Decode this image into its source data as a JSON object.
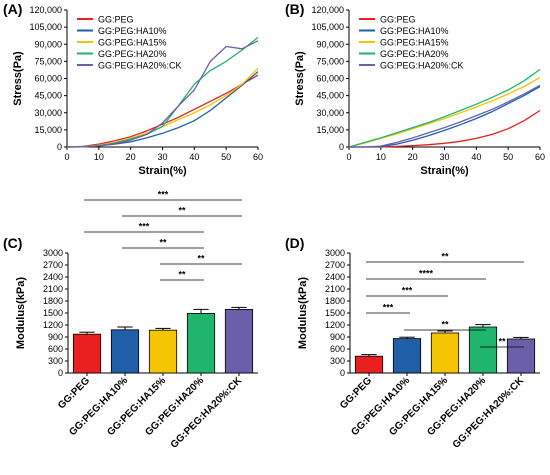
{
  "figure": {
    "colors": {
      "GG:PEG": "#e8201f",
      "GG:PEG:HA10%": "#1e5fa8",
      "GG:PEG:HA15%": "#f5c400",
      "GG:PEG:HA20%": "#1fb56c",
      "GG:PEG:HA20%:CK": "#6a5fa8"
    }
  },
  "chart_data": [
    {
      "panel": "(A)",
      "type": "line",
      "xlabel": "Strain(%)",
      "ylabel": "Stress(Pa)",
      "xlim": [
        0,
        60
      ],
      "ylim": [
        0,
        120000
      ],
      "xticks": [
        "0",
        "10",
        "20",
        "30",
        "40",
        "50",
        "60"
      ],
      "yticks": [
        "0",
        "15,000",
        "30,000",
        "45,000",
        "60,000",
        "75,000",
        "90,000",
        "105,000",
        "120,000"
      ],
      "legend_position": "top-left",
      "x": [
        0,
        5,
        10,
        15,
        20,
        25,
        30,
        35,
        40,
        45,
        50,
        55,
        60
      ],
      "series": [
        {
          "name": "GG:PEG",
          "values": [
            0,
            500,
            2500,
            5500,
            9000,
            14000,
            20000,
            26000,
            33000,
            40000,
            47000,
            55000,
            63000
          ]
        },
        {
          "name": "GG:PEG:HA10%",
          "values": [
            0,
            200,
            1000,
            2500,
            4500,
            8000,
            12000,
            17000,
            23000,
            32000,
            43000,
            54000,
            66000
          ]
        },
        {
          "name": "GG:PEG:HA15%",
          "values": [
            0,
            300,
            1500,
            4000,
            7500,
            12000,
            18000,
            24000,
            30000,
            37000,
            45000,
            55000,
            69000
          ]
        },
        {
          "name": "GG:PEG:HA20%",
          "values": [
            0,
            300,
            1200,
            3500,
            7000,
            11000,
            18000,
            36000,
            55000,
            67000,
            75000,
            85000,
            96000
          ]
        },
        {
          "name": "GG:PEG:HA20%:CK",
          "values": [
            0,
            200,
            1000,
            3000,
            6000,
            11000,
            21000,
            36000,
            50000,
            75000,
            88000,
            86000,
            93000
          ]
        }
      ]
    },
    {
      "panel": "(B)",
      "type": "line",
      "xlabel": "Strain(%)",
      "ylabel": "Stress(Pa)",
      "xlim": [
        0,
        60
      ],
      "ylim": [
        0,
        120000
      ],
      "xticks": [
        "0",
        "10",
        "20",
        "30",
        "40",
        "50",
        "60"
      ],
      "yticks": [
        "0",
        "15,000",
        "30,000",
        "45,000",
        "60,000",
        "75,000",
        "90,000",
        "105,000",
        "120,000"
      ],
      "legend_position": "top-left",
      "x": [
        0,
        5,
        10,
        15,
        20,
        25,
        30,
        35,
        40,
        45,
        50,
        55,
        60
      ],
      "series": [
        {
          "name": "GG:PEG",
          "values": [
            0,
            0,
            0,
            500,
            1200,
            2000,
            3200,
            5000,
            7500,
            11000,
            16000,
            23000,
            32000
          ]
        },
        {
          "name": "GG:PEG:HA10%",
          "values": [
            0,
            0,
            300,
            2500,
            6000,
            10000,
            14500,
            19500,
            25000,
            31000,
            38000,
            45000,
            53000
          ]
        },
        {
          "name": "GG:PEG:HA15%",
          "values": [
            0,
            3500,
            7500,
            11500,
            16000,
            20500,
            25000,
            30000,
            35000,
            40500,
            46500,
            53000,
            61000
          ]
        },
        {
          "name": "GG:PEG:HA20%",
          "values": [
            0,
            4000,
            8000,
            12500,
            17000,
            21500,
            26500,
            32000,
            37500,
            43500,
            50000,
            58000,
            68000
          ]
        },
        {
          "name": "GG:PEG:HA20%:CK",
          "values": [
            0,
            0,
            800,
            4000,
            8000,
            12500,
            17000,
            22000,
            27500,
            33000,
            39500,
            46500,
            54000
          ]
        }
      ]
    },
    {
      "panel": "(C)",
      "type": "bar",
      "ylabel": "Modulus(kPa)",
      "ylim": [
        0,
        3000
      ],
      "yticks": [
        "0",
        "300",
        "600",
        "900",
        "1200",
        "1500",
        "1800",
        "2100",
        "2400",
        "2700",
        "3000"
      ],
      "categories": [
        "GG:PEG",
        "GG:PEG:HA10%",
        "GG:PEG:HA15%",
        "GG:PEG:HA20%",
        "GG:PEG:HA20%:CK"
      ],
      "values": [
        970,
        1080,
        1070,
        1490,
        1590
      ],
      "errors": [
        50,
        70,
        45,
        100,
        50
      ],
      "significance": [
        {
          "from": 0,
          "to": 4,
          "label": "***"
        },
        {
          "from": 1,
          "to": 4,
          "label": "**"
        },
        {
          "from": 0,
          "to": 3,
          "label": "***"
        },
        {
          "from": 1,
          "to": 3,
          "label": "**"
        },
        {
          "from": 2,
          "to": 4,
          "label": "**"
        },
        {
          "from": 2,
          "to": 3,
          "label": "**"
        }
      ]
    },
    {
      "panel": "(D)",
      "type": "bar",
      "ylabel": "Modulus(kPa)",
      "ylim": [
        0,
        3000
      ],
      "yticks": [
        "0",
        "300",
        "600",
        "900",
        "1200",
        "1500",
        "1800",
        "2100",
        "2400",
        "2700",
        "3000"
      ],
      "categories": [
        "GG:PEG",
        "GG:PEG:HA10%",
        "GG:PEG:HA15%",
        "GG:PEG:HA20%",
        "GG:PEG:HA20%:CK"
      ],
      "values": [
        420,
        860,
        1000,
        1150,
        850
      ],
      "errors": [
        40,
        35,
        50,
        60,
        40
      ],
      "significance": [
        {
          "from": 0,
          "to": 4,
          "label": "**"
        },
        {
          "from": 0,
          "to": 3,
          "label": "****"
        },
        {
          "from": 0,
          "to": 2,
          "label": "***"
        },
        {
          "from": 0,
          "to": 1,
          "label": "***"
        },
        {
          "from": 1,
          "to": 3,
          "label": "**"
        },
        {
          "from": 3,
          "to": 4,
          "label": "**"
        }
      ]
    }
  ]
}
